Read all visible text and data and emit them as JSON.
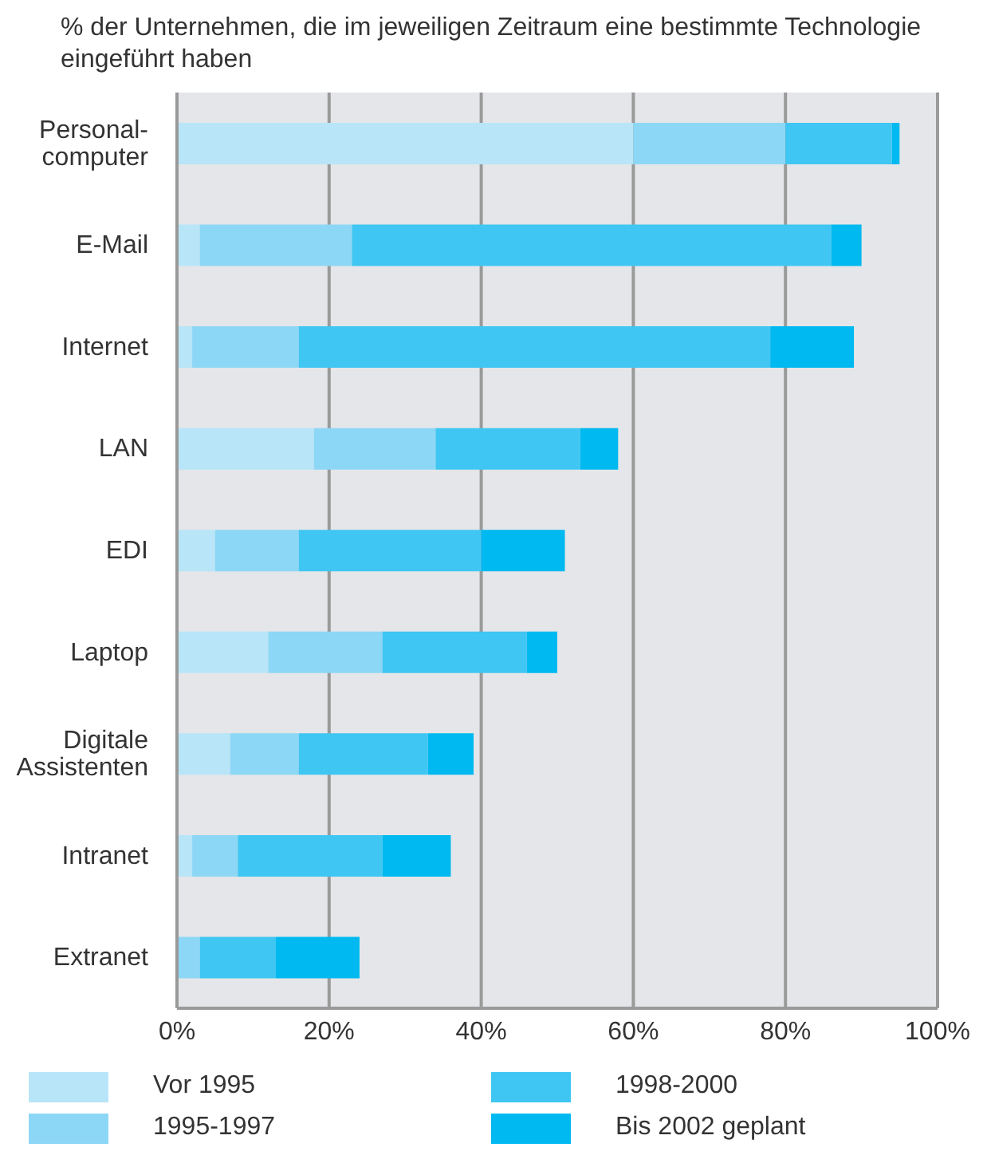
{
  "chart_data": {
    "type": "bar",
    "orientation": "horizontal",
    "stacked": true,
    "title": "% der Unternehmen, die im jeweiligen Zeitraum eine bestimmte Technologie eingeführt haben",
    "categories": [
      "Personal-computer",
      "E-Mail",
      "Internet",
      "LAN",
      "EDI",
      "Laptop",
      "Digitale Assistenten",
      "Intranet",
      "Extranet"
    ],
    "series": [
      {
        "name": "Vor 1995",
        "color": "#b8e5f8",
        "values": [
          60,
          3,
          2,
          18,
          5,
          12,
          7,
          2,
          0
        ]
      },
      {
        "name": "1995-1997",
        "color": "#8dd7f6",
        "values": [
          20,
          20,
          14,
          16,
          11,
          15,
          9,
          6,
          3
        ]
      },
      {
        "name": "1998-2000",
        "color": "#40c6f2",
        "values": [
          14,
          63,
          62,
          19,
          24,
          19,
          17,
          19,
          10
        ]
      },
      {
        "name": "Bis 2002 geplant",
        "color": "#00b9f0",
        "values": [
          1,
          4,
          11,
          5,
          11,
          4,
          6,
          9,
          11
        ]
      }
    ],
    "xlim": [
      0,
      100
    ],
    "xticks": [
      {
        "value": 0,
        "label": "0%"
      },
      {
        "value": 20,
        "label": "20%"
      },
      {
        "value": 40,
        "label": "40%"
      },
      {
        "value": 60,
        "label": "60%"
      },
      {
        "value": 80,
        "label": "80%"
      },
      {
        "value": 100,
        "label": "100%"
      }
    ],
    "grid": "x",
    "legend": "bottom"
  }
}
